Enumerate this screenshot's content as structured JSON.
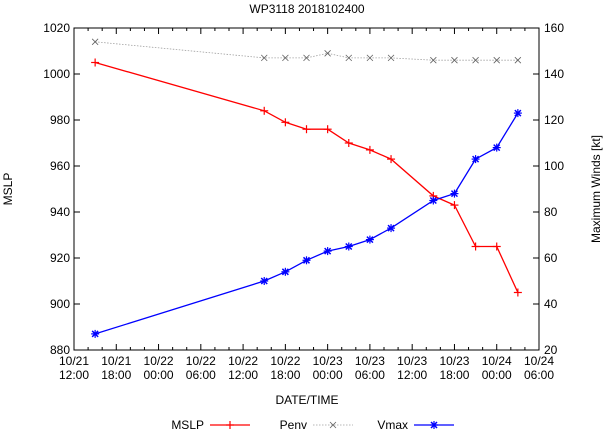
{
  "chart_data": {
    "type": "line",
    "title": "WP3118 2018102400",
    "xlabel": "DATE/TIME",
    "ylabel": "MSLP",
    "y2label": "Maximum Winds [kt]",
    "ylim": [
      880,
      1020
    ],
    "y2lim": [
      20,
      160
    ],
    "yticks": [
      "880",
      "900",
      "920",
      "940",
      "960",
      "980",
      "1000",
      "1020"
    ],
    "y2ticks": [
      "20",
      "40",
      "60",
      "80",
      "100",
      "120",
      "140",
      "160"
    ],
    "xlim_hours": [
      0,
      66
    ],
    "xticks": [
      {
        "date": "10/21",
        "time": "12:00"
      },
      {
        "date": "10/21",
        "time": "18:00"
      },
      {
        "date": "10/22",
        "time": "00:00"
      },
      {
        "date": "10/22",
        "time": "06:00"
      },
      {
        "date": "10/22",
        "time": "12:00"
      },
      {
        "date": "10/22",
        "time": "18:00"
      },
      {
        "date": "10/23",
        "time": "00:00"
      },
      {
        "date": "10/23",
        "time": "06:00"
      },
      {
        "date": "10/23",
        "time": "12:00"
      },
      {
        "date": "10/23",
        "time": "18:00"
      },
      {
        "date": "10/24",
        "time": "00:00"
      },
      {
        "date": "10/24",
        "time": "06:00"
      }
    ],
    "x_hours_since_10_21_12z": [
      3,
      27,
      30,
      33,
      36,
      39,
      42,
      45,
      51,
      54,
      57,
      60,
      63
    ],
    "series": [
      {
        "name": "MSLP",
        "axis": "left",
        "color": "#ff0000",
        "style": "solid",
        "marker": "plus",
        "values": [
          1005,
          984,
          979,
          976,
          976,
          970,
          967,
          963,
          947,
          943,
          925,
          925,
          905
        ]
      },
      {
        "name": "Penv",
        "axis": "left",
        "color": "#a0a0a0",
        "style": "dotted",
        "marker": "x",
        "values": [
          1014,
          1007,
          1007,
          1007,
          1009,
          1007,
          1007,
          1007,
          1006,
          1006,
          1006,
          1006,
          1006
        ]
      },
      {
        "name": "Vmax",
        "axis": "right",
        "color": "#0000ff",
        "style": "solid",
        "marker": "star",
        "values": [
          27,
          50,
          54,
          59,
          63,
          65,
          68,
          73,
          85,
          88,
          103,
          108,
          123
        ]
      }
    ],
    "legend_position": "bottom-center"
  }
}
